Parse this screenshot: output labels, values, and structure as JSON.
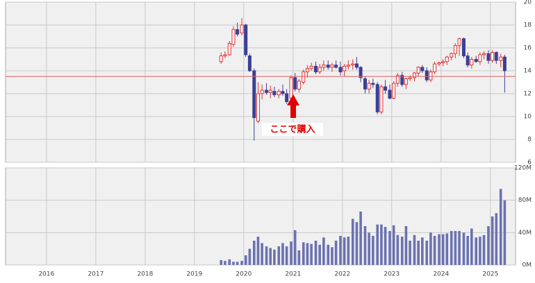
{
  "chart_data": [
    {
      "type": "candlestick",
      "x": [
        2019.54,
        2019.62,
        2019.71,
        2019.79,
        2019.87,
        2019.96,
        2020.04,
        2020.12,
        2020.21,
        2020.29,
        2020.37,
        2020.46,
        2020.54,
        2020.62,
        2020.71,
        2020.79,
        2020.87,
        2020.96,
        2021.04,
        2021.12,
        2021.21,
        2021.29,
        2021.37,
        2021.46,
        2021.54,
        2021.62,
        2021.71,
        2021.79,
        2021.87,
        2021.96,
        2022.04,
        2022.12,
        2022.21,
        2022.29,
        2022.37,
        2022.46,
        2022.54,
        2022.62,
        2022.71,
        2022.79,
        2022.87,
        2022.96,
        2023.04,
        2023.12,
        2023.21,
        2023.29,
        2023.37,
        2023.46,
        2023.54,
        2023.62,
        2023.71,
        2023.79,
        2023.87,
        2023.96,
        2024.04,
        2024.12,
        2024.21,
        2024.29,
        2024.37,
        2024.46,
        2024.54,
        2024.62,
        2024.71,
        2024.79,
        2024.87,
        2024.96,
        2025.04,
        2025.12,
        2025.21,
        2025.29
      ],
      "open": [
        14.8,
        15.3,
        15.4,
        16.3,
        17.6,
        17.3,
        18.0,
        15.3,
        14.0,
        9.6,
        12.0,
        12.3,
        12.1,
        12.2,
        11.9,
        12.2,
        12.0,
        11.6,
        13.4,
        12.4,
        13.0,
        13.9,
        14.2,
        14.4,
        13.9,
        14.3,
        14.5,
        14.3,
        14.5,
        14.3,
        14.0,
        14.4,
        14.5,
        14.6,
        14.3,
        13.3,
        12.4,
        12.9,
        12.8,
        10.4,
        12.6,
        12.3,
        11.6,
        12.9,
        13.6,
        12.8,
        13.3,
        13.4,
        13.8,
        14.3,
        14.0,
        13.2,
        13.9,
        14.6,
        14.7,
        14.8,
        15.2,
        15.5,
        16.2,
        16.8,
        15.3,
        14.5,
        15.0,
        14.8,
        15.4,
        15.5,
        14.9,
        15.6,
        14.9,
        15.2
      ],
      "high": [
        15.6,
        15.7,
        16.6,
        17.9,
        18.2,
        18.6,
        18.1,
        15.5,
        14.2,
        13.0,
        12.8,
        12.9,
        12.7,
        12.6,
        12.4,
        12.8,
        12.4,
        13.6,
        13.8,
        13.3,
        14.1,
        14.5,
        14.7,
        14.8,
        14.6,
        14.9,
        14.9,
        14.7,
        14.9,
        14.8,
        14.6,
        14.9,
        15.0,
        15.2,
        14.4,
        13.5,
        13.2,
        13.3,
        13.0,
        12.8,
        13.2,
        12.8,
        13.1,
        13.8,
        13.9,
        13.4,
        13.6,
        13.9,
        14.4,
        14.5,
        14.3,
        14.1,
        14.8,
        14.8,
        15.0,
        15.3,
        15.6,
        16.4,
        16.9,
        16.9,
        15.6,
        15.2,
        15.3,
        15.6,
        15.7,
        15.8,
        15.8,
        15.7,
        15.5,
        15.4
      ],
      "low": [
        14.6,
        15.1,
        15.3,
        16.1,
        17.0,
        17.1,
        15.2,
        13.9,
        7.9,
        9.4,
        11.5,
        11.9,
        11.6,
        11.7,
        11.6,
        11.8,
        11.1,
        11.4,
        12.2,
        12.1,
        12.8,
        13.4,
        14.0,
        13.7,
        13.7,
        14.0,
        14.1,
        13.9,
        14.2,
        13.6,
        13.5,
        14.1,
        14.1,
        14.1,
        13.0,
        12.0,
        12.0,
        12.5,
        10.2,
        10.2,
        12.0,
        11.5,
        11.5,
        12.6,
        12.6,
        12.4,
        13.1,
        13.1,
        13.5,
        13.8,
        13.0,
        13.0,
        13.7,
        14.4,
        14.4,
        14.5,
        14.9,
        15.1,
        15.3,
        15.1,
        14.3,
        14.2,
        14.7,
        14.5,
        15.0,
        14.6,
        14.7,
        14.6,
        14.3,
        12.1
      ],
      "close": [
        15.3,
        15.4,
        16.4,
        17.6,
        17.2,
        18.0,
        15.4,
        14.0,
        9.9,
        12.0,
        12.3,
        12.1,
        12.3,
        11.9,
        12.2,
        12.0,
        11.3,
        13.4,
        12.4,
        13.1,
        13.9,
        14.2,
        14.4,
        13.9,
        14.3,
        14.5,
        14.3,
        14.5,
        14.3,
        13.9,
        14.4,
        14.5,
        14.6,
        14.3,
        13.4,
        12.4,
        12.9,
        12.8,
        10.4,
        12.6,
        12.3,
        11.6,
        12.9,
        13.6,
        12.8,
        13.3,
        13.4,
        13.8,
        14.3,
        14.0,
        13.2,
        13.9,
        14.6,
        14.7,
        14.8,
        15.2,
        15.5,
        16.2,
        16.8,
        15.3,
        14.5,
        15.0,
        14.8,
        15.4,
        15.5,
        14.9,
        15.6,
        14.9,
        15.2,
        14.0
      ],
      "up_color": "#e03030",
      "down_color": "#3c3f95",
      "xlim": [
        2015.17,
        2025.51
      ],
      "xticks": [
        2016,
        2017,
        2018,
        2019,
        2020,
        2021,
        2022,
        2023,
        2024,
        2025
      ],
      "ylim": [
        6,
        20
      ],
      "yticks": [
        6,
        8,
        10,
        12,
        14,
        16,
        18,
        20
      ],
      "grid": true,
      "hline": 13.5,
      "hline_color": "#e06060",
      "annotation": "ここで購入",
      "annotation_color": "#e00000"
    },
    {
      "type": "bar",
      "x": [
        2019.54,
        2019.62,
        2019.71,
        2019.79,
        2019.87,
        2019.96,
        2020.04,
        2020.12,
        2020.21,
        2020.29,
        2020.37,
        2020.46,
        2020.54,
        2020.62,
        2020.71,
        2020.79,
        2020.87,
        2020.96,
        2021.04,
        2021.12,
        2021.21,
        2021.29,
        2021.37,
        2021.46,
        2021.54,
        2021.62,
        2021.71,
        2021.79,
        2021.87,
        2021.96,
        2022.04,
        2022.12,
        2022.21,
        2022.29,
        2022.37,
        2022.46,
        2022.54,
        2022.62,
        2022.71,
        2022.79,
        2022.87,
        2022.96,
        2023.04,
        2023.12,
        2023.21,
        2023.29,
        2023.37,
        2023.46,
        2023.54,
        2023.62,
        2023.71,
        2023.79,
        2023.87,
        2023.96,
        2024.04,
        2024.12,
        2024.21,
        2024.29,
        2024.37,
        2024.46,
        2024.54,
        2024.62,
        2024.71,
        2024.79,
        2024.87,
        2024.96,
        2025.04,
        2025.12,
        2025.21,
        2025.29
      ],
      "values": [
        6000000,
        5000000,
        7000000,
        4000000,
        4000000,
        5000000,
        12000000,
        20000000,
        30000000,
        35000000,
        27000000,
        23000000,
        21000000,
        19000000,
        23000000,
        27000000,
        23000000,
        29000000,
        43000000,
        18000000,
        28000000,
        27000000,
        26000000,
        30000000,
        25000000,
        34000000,
        25000000,
        22000000,
        30000000,
        36000000,
        34000000,
        35000000,
        57000000,
        53000000,
        66000000,
        48000000,
        40000000,
        36000000,
        50000000,
        50000000,
        47000000,
        42000000,
        49000000,
        37000000,
        35000000,
        48000000,
        30000000,
        37000000,
        30000000,
        34000000,
        30000000,
        40000000,
        36000000,
        38000000,
        38000000,
        39000000,
        42000000,
        42000000,
        42000000,
        40000000,
        36000000,
        45000000,
        34000000,
        35000000,
        37000000,
        48000000,
        60000000,
        64000000,
        94000000,
        80000000
      ],
      "color": "#6b72b0",
      "xlim": [
        2015.17,
        2025.51
      ],
      "xticks": [
        2016,
        2017,
        2018,
        2019,
        2020,
        2021,
        2022,
        2023,
        2024,
        2025
      ],
      "ylim": [
        0,
        120000000
      ],
      "yticks": [
        {
          "value": 0,
          "label": "0M"
        },
        {
          "value": 40000000,
          "label": "40M"
        },
        {
          "value": 80000000,
          "label": "80M"
        },
        {
          "value": 120000000,
          "label": "120M"
        }
      ],
      "grid": true
    }
  ]
}
